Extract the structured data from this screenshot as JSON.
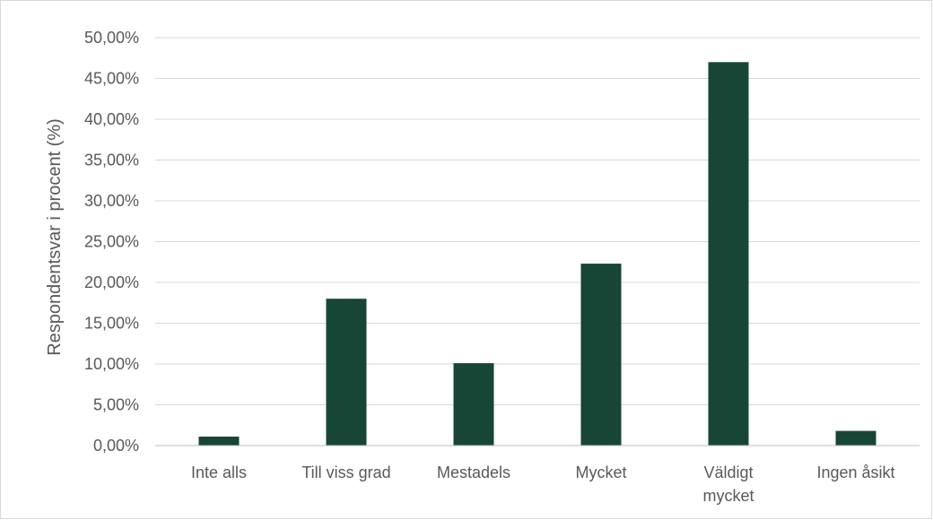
{
  "chart_data": {
    "type": "bar",
    "categories": [
      "Inte alls",
      "Till viss grad",
      "Mestadels",
      "Mycket",
      "Väldigt mycket",
      "Ingen åsikt"
    ],
    "category_label_lines": [
      [
        "Inte alls"
      ],
      [
        "Till viss grad"
      ],
      [
        "Mestadels"
      ],
      [
        "Mycket"
      ],
      [
        "Väldigt",
        "mycket"
      ],
      [
        "Ingen åsikt"
      ]
    ],
    "values": [
      1.1,
      18.0,
      10.1,
      22.3,
      47.0,
      1.8
    ],
    "title": "",
    "xlabel": "",
    "ylabel": "Respondentsvar i procent (%)",
    "ylim": [
      0,
      50
    ],
    "yticks": [
      0,
      5,
      10,
      15,
      20,
      25,
      30,
      35,
      40,
      45,
      50
    ],
    "ytick_labels": [
      "0,00%",
      "5,00%",
      "10,00%",
      "15,00%",
      "20,00%",
      "25,00%",
      "30,00%",
      "35,00%",
      "40,00%",
      "45,00%",
      "50,00%"
    ],
    "grid": true,
    "legend": "none",
    "colors": {
      "bar": "#174636",
      "grid": "#d9d9d9",
      "axis": "#bfbfbf",
      "text": "#595959"
    }
  }
}
